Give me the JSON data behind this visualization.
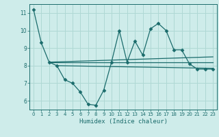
{
  "title": "",
  "xlabel": "Humidex (Indice chaleur)",
  "bg_color": "#ceecea",
  "grid_color": "#afd8d4",
  "line_color": "#1a6b6b",
  "xlim": [
    -0.5,
    23.5
  ],
  "ylim": [
    5.5,
    11.5
  ],
  "yticks": [
    6,
    7,
    8,
    9,
    10,
    11
  ],
  "xticks": [
    0,
    1,
    2,
    3,
    4,
    5,
    6,
    7,
    8,
    9,
    10,
    11,
    12,
    13,
    14,
    15,
    16,
    17,
    18,
    19,
    20,
    21,
    22,
    23
  ],
  "line1_x": [
    0,
    1,
    2,
    3,
    4,
    5,
    6,
    7,
    8,
    9,
    10,
    11,
    12,
    13,
    14,
    15,
    16,
    17,
    18,
    19,
    20,
    21,
    22,
    23
  ],
  "line1_y": [
    11.2,
    9.3,
    8.2,
    8.0,
    7.2,
    7.0,
    6.5,
    5.8,
    5.75,
    6.6,
    8.2,
    10.0,
    8.2,
    9.4,
    8.6,
    10.1,
    10.4,
    10.0,
    8.9,
    8.9,
    8.1,
    7.8,
    7.8,
    7.8
  ],
  "line2_x": [
    2,
    23
  ],
  "line2_y": [
    8.2,
    8.2
  ],
  "line3_x": [
    2,
    23
  ],
  "line3_y": [
    8.2,
    8.5
  ],
  "line4_x": [
    3,
    23
  ],
  "line4_y": [
    8.0,
    7.85
  ]
}
